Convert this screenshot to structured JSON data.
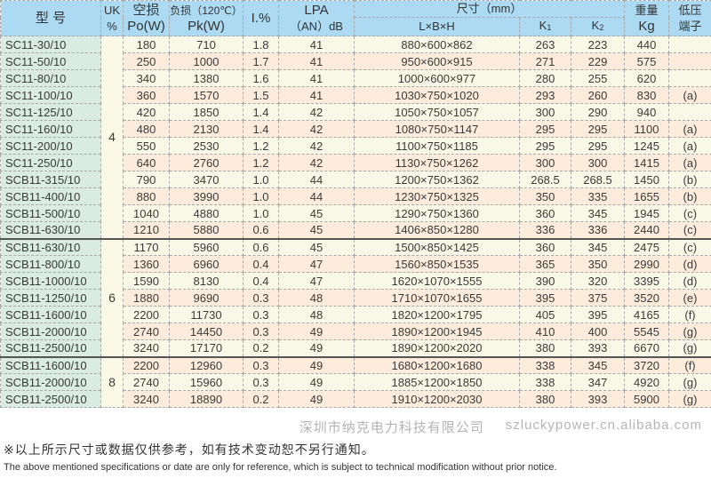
{
  "header": {
    "model": "型 号",
    "uk_top": "UK",
    "uk_bottom": "%",
    "po_top": "空损",
    "po_bottom": "Po(W)",
    "pk_top": "负损（120℃）",
    "pk_bottom": "Pk(W)",
    "io": "I.%",
    "lpa_top": "LPA",
    "lpa_bottom": "（AN）dB",
    "size": "尺寸（mm）",
    "lbh": "L×B×H",
    "k1": "K",
    "k1_sub": "1",
    "k2": "K",
    "k2_sub": "2",
    "weight_top": "重量",
    "weight_bottom": "Kg",
    "terminal_top": "低压",
    "terminal_bottom": "端子"
  },
  "groups": [
    {
      "uk": "4",
      "rows": [
        [
          "SC11-30/10",
          "180",
          "710",
          "1.8",
          "41",
          "880×600×862",
          "263",
          "223",
          "440",
          ""
        ],
        [
          "SC11-50/10",
          "250",
          "1000",
          "1.7",
          "41",
          "950×600×915",
          "271",
          "229",
          "575",
          ""
        ],
        [
          "SC11-80/10",
          "340",
          "1380",
          "1.6",
          "41",
          "1000×600×977",
          "280",
          "255",
          "620",
          ""
        ],
        [
          "SC11-100/10",
          "360",
          "1570",
          "1.5",
          "41",
          "1030×750×1020",
          "293",
          "260",
          "830",
          "(a)"
        ],
        [
          "SC11-125/10",
          "420",
          "1850",
          "1.4",
          "42",
          "1050×750×1057",
          "300",
          "290",
          "940",
          ""
        ],
        [
          "SC11-160/10",
          "480",
          "2130",
          "1.4",
          "42",
          "1080×750×1147",
          "295",
          "295",
          "1100",
          "(a)"
        ],
        [
          "SC11-200/10",
          "550",
          "2530",
          "1.2",
          "42",
          "1100×750×1185",
          "295",
          "295",
          "1245",
          "(a)"
        ],
        [
          "SC11-250/10",
          "640",
          "2760",
          "1.2",
          "42",
          "1130×750×1262",
          "300",
          "300",
          "1415",
          "(a)"
        ],
        [
          "SCB11-315/10",
          "790",
          "3470",
          "1.0",
          "44",
          "1200×750×1362",
          "268.5",
          "268.5",
          "1450",
          "(b)"
        ],
        [
          "SCB11-400/10",
          "880",
          "3990",
          "1.0",
          "44",
          "1230×750×1325",
          "350",
          "335",
          "1655",
          "(b)"
        ],
        [
          "SCB11-500/10",
          "1040",
          "4880",
          "1.0",
          "45",
          "1290×750×1360",
          "360",
          "345",
          "1945",
          "(c)"
        ],
        [
          "SCB11-630/10",
          "1210",
          "5880",
          "0.6",
          "45",
          "1406×850×1280",
          "336",
          "336",
          "2440",
          "(c)"
        ]
      ]
    },
    {
      "uk": "6",
      "rows": [
        [
          "SCB11-630/10",
          "1170",
          "5960",
          "0.6",
          "45",
          "1500×850×1425",
          "360",
          "345",
          "2475",
          "(c)"
        ],
        [
          "SCB11-800/10",
          "1360",
          "6960",
          "0.4",
          "47",
          "1560×850×1535",
          "365",
          "350",
          "2990",
          "(d)"
        ],
        [
          "SCB11-1000/10",
          "1590",
          "8130",
          "0.4",
          "47",
          "1620×1070×1555",
          "390",
          "320",
          "3395",
          "(d)"
        ],
        [
          "SCB11-1250/10",
          "1880",
          "9690",
          "0.3",
          "48",
          "1710×1070×1655",
          "395",
          "375",
          "3520",
          "(e)"
        ],
        [
          "SCB11-1600/10",
          "2200",
          "11730",
          "0.3",
          "48",
          "1820×1200×1795",
          "405",
          "395",
          "4165",
          "(f)"
        ],
        [
          "SCB11-2000/10",
          "2740",
          "14450",
          "0.3",
          "49",
          "1890×1200×1945",
          "410",
          "400",
          "5545",
          "(g)"
        ],
        [
          "SCB11-2500/10",
          "3240",
          "17170",
          "0.2",
          "49",
          "1890×1200×2020",
          "380",
          "393",
          "6670",
          "(g)"
        ]
      ]
    },
    {
      "uk": "8",
      "rows": [
        [
          "SCB11-1600/10",
          "2200",
          "12960",
          "0.3",
          "49",
          "1680×1200×1680",
          "338",
          "345",
          "3720",
          "(f)"
        ],
        [
          "SCB11-2000/10",
          "2740",
          "15960",
          "0.3",
          "49",
          "1885×1200×1850",
          "338",
          "347",
          "4920",
          "(g)"
        ],
        [
          "SCB11-2500/10",
          "3240",
          "18890",
          "0.2",
          "49",
          "1910×1200×2030",
          "380",
          "393",
          "5900",
          "(g)"
        ]
      ]
    }
  ],
  "notes": {
    "cn": "※以上所示尺寸或数据仅供参考，如有技术变动恕不另行通知。",
    "en": "The above mentioned specifications or date are only for reference, which is subject to technical modification without prior notice."
  },
  "watermark": {
    "company": "深圳市纳克电力科技有限公司",
    "url": "szluckypower.cn.alibaba.com"
  },
  "colors": {
    "header_bg": "#abdaf2",
    "model_bg": "#d9ebe3",
    "row_light": "#f8f8e6",
    "row_peach": "#fdecdb"
  }
}
